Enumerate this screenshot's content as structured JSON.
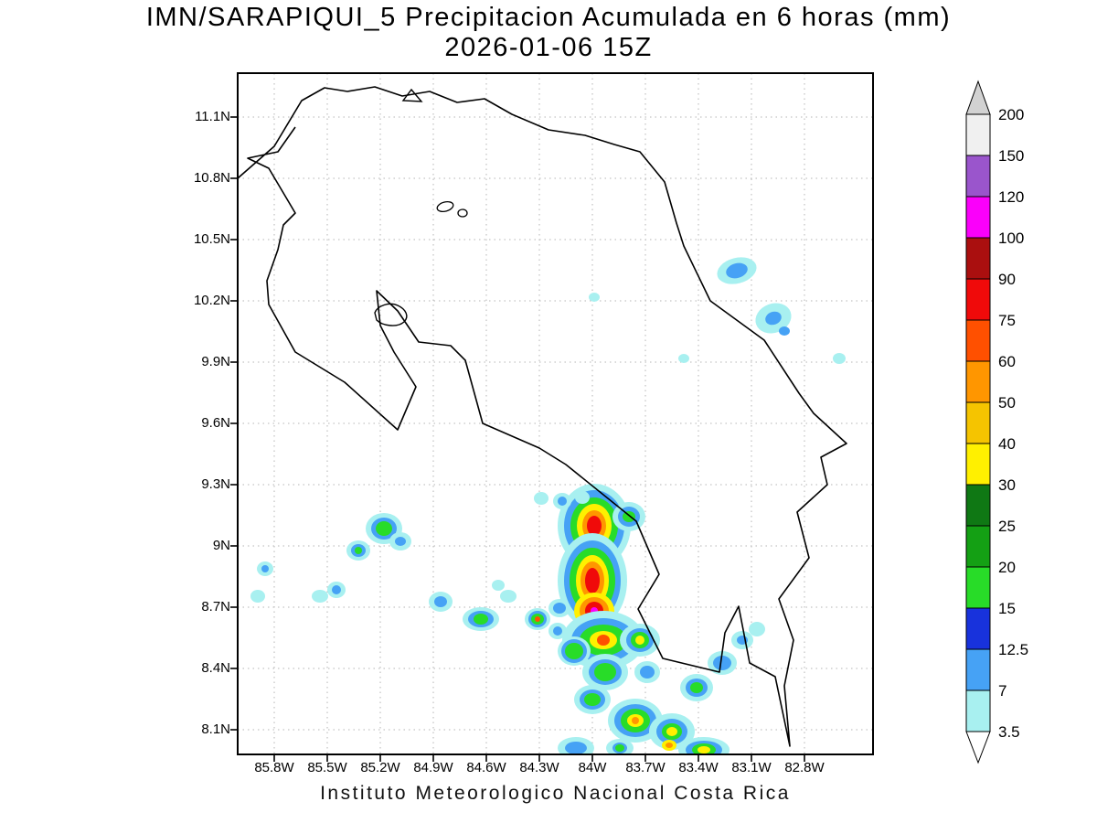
{
  "title": {
    "line1": "IMN/SARAPIQUI_5 Precipitacion Acumulada en 6 horas (mm)",
    "line2": "2026-01-06 15Z"
  },
  "caption": "Instituto Meteorologico Nacional Costa Rica",
  "axes": {
    "x_ticks": [
      "85.8W",
      "85.5W",
      "85.2W",
      "84.9W",
      "84.6W",
      "84.3W",
      "84W",
      "83.7W",
      "83.4W",
      "83.1W",
      "82.8W"
    ],
    "y_ticks": [
      "11.1N",
      "10.8N",
      "10.5N",
      "10.2N",
      "9.9N",
      "9.6N",
      "9.3N",
      "9N",
      "8.7N",
      "8.4N",
      "8.1N"
    ]
  },
  "legend": {
    "boundary_labels_top_to_bottom": [
      "200",
      "150",
      "120",
      "100",
      "90",
      "75",
      "60",
      "50",
      "40",
      "30",
      "25",
      "20",
      "15",
      "12.5",
      "7",
      "3.5"
    ]
  },
  "chart_data": {
    "type": "heatmap",
    "subtype": "filled_contour_precipitation_map",
    "title": "IMN/SARAPIQUI_5 Precipitacion Acumulada en 6 horas (mm)",
    "subtitle": "2026-01-06 15Z",
    "units": "mm",
    "region": "Costa Rica",
    "extent": {
      "lon_west": 86.0,
      "lon_east": 82.5,
      "lat_south": 8.0,
      "lat_north": 11.3
    },
    "levels_mm": [
      3.5,
      7,
      12.5,
      15,
      20,
      25,
      30,
      40,
      50,
      60,
      75,
      90,
      100,
      120,
      150,
      200
    ],
    "palette_low_to_high": [
      "#a8f0f0",
      "#46a2f5",
      "#1832dc",
      "#28dc28",
      "#14a014",
      "#0f7814",
      "#fff000",
      "#f5c400",
      "#ff9600",
      "#ff5000",
      "#f00a0a",
      "#aa0f0f",
      "#fa00fa",
      "#9a55cc",
      "#f0f0f0"
    ],
    "over_color": "#d2d2d2",
    "under_color": "#ffffff",
    "maxima": [
      {
        "lat_N": 8.7,
        "lon_W": 84.05,
        "peak_mm_range": "100-120"
      },
      {
        "lat_N": 9.0,
        "lon_W": 84.05,
        "peak_mm_range": "75-90"
      },
      {
        "lat_N": 8.62,
        "lon_W": 84.02,
        "peak_mm_range": "75-90"
      },
      {
        "lat_N": 8.15,
        "lon_W": 83.72,
        "peak_mm_range": "50-60"
      },
      {
        "lat_N": 10.25,
        "lon_W": 83.05,
        "peak_mm_range": "7-12.5"
      },
      {
        "lat_N": 10.0,
        "lon_W": 82.85,
        "peak_mm_range": "7-12.5"
      }
    ]
  },
  "map": {
    "blobs": [
      {
        "c": [
          390,
          495
        ],
        "l": [
          [
            1,
            40,
            46
          ],
          [
            2,
            33,
            39
          ],
          [
            4,
            26,
            31
          ],
          [
            7,
            19,
            24
          ],
          [
            9,
            13,
            17
          ],
          [
            11,
            8,
            11
          ]
        ]
      },
      {
        "c": [
          388,
          555
        ],
        "l": [
          [
            1,
            38,
            52
          ],
          [
            2,
            31,
            44
          ],
          [
            4,
            25,
            36
          ],
          [
            7,
            18,
            28
          ],
          [
            9,
            13,
            21
          ],
          [
            11,
            8,
            14
          ]
        ]
      },
      {
        "c": [
          390,
          588
        ],
        "l": [
          [
            7,
            22,
            20
          ],
          [
            9,
            16,
            15
          ],
          [
            11,
            10,
            10
          ],
          [
            13,
            4,
            4
          ]
        ]
      },
      {
        "c": [
          428,
          485
        ],
        "l": [
          [
            1,
            18,
            16
          ],
          [
            2,
            12,
            11
          ],
          [
            4,
            7,
            6
          ]
        ]
      },
      {
        "c": [
          355,
          468
        ],
        "l": [
          [
            1,
            10,
            9
          ],
          [
            2,
            5,
            5
          ]
        ]
      },
      {
        "c": [
          377,
          464
        ],
        "l": [
          [
            1,
            8,
            7
          ]
        ]
      },
      {
        "c": [
          400,
          620
        ],
        "l": [
          [
            1,
            45,
            32
          ],
          [
            2,
            35,
            24
          ],
          [
            4,
            26,
            17
          ],
          [
            7,
            15,
            10
          ],
          [
            10,
            7,
            6
          ]
        ]
      },
      {
        "c": [
          368,
          632
        ],
        "l": [
          [
            1,
            18,
            16
          ],
          [
            2,
            14,
            13
          ],
          [
            4,
            10,
            9
          ]
        ]
      },
      {
        "c": [
          440,
          620
        ],
        "l": [
          [
            1,
            22,
            18
          ],
          [
            2,
            15,
            13
          ],
          [
            4,
            10,
            9
          ],
          [
            7,
            5,
            5
          ]
        ]
      },
      {
        "c": [
          402,
          655
        ],
        "l": [
          [
            1,
            25,
            20
          ],
          [
            2,
            18,
            14
          ],
          [
            4,
            12,
            10
          ]
        ]
      },
      {
        "c": [
          448,
          655
        ],
        "l": [
          [
            1,
            14,
            12
          ],
          [
            2,
            8,
            7
          ]
        ]
      },
      {
        "c": [
          388,
          685
        ],
        "l": [
          [
            1,
            20,
            16
          ],
          [
            2,
            14,
            11
          ],
          [
            4,
            9,
            7
          ]
        ]
      },
      {
        "c": [
          435,
          708
        ],
        "l": [
          [
            1,
            30,
            24
          ],
          [
            2,
            23,
            18
          ],
          [
            4,
            16,
            13
          ],
          [
            7,
            9,
            7
          ],
          [
            9,
            4,
            4
          ]
        ]
      },
      {
        "c": [
          475,
          720
        ],
        "l": [
          [
            1,
            25,
            20
          ],
          [
            2,
            17,
            14
          ],
          [
            4,
            11,
            9
          ],
          [
            7,
            6,
            5
          ]
        ]
      },
      {
        "c": [
          502,
          672
        ],
        "l": [
          [
            1,
            18,
            15
          ],
          [
            2,
            12,
            10
          ],
          [
            4,
            7,
            6
          ]
        ]
      },
      {
        "c": [
          530,
          645
        ],
        "l": [
          [
            1,
            16,
            13
          ],
          [
            2,
            10,
            8
          ]
        ]
      },
      {
        "c": [
          552,
          620
        ],
        "l": [
          [
            1,
            12,
            10
          ],
          [
            2,
            6,
            5
          ]
        ]
      },
      {
        "c": [
          568,
          608
        ],
        "l": [
          [
            1,
            9,
            8
          ]
        ]
      },
      {
        "c": [
          510,
          740
        ],
        "l": [
          [
            1,
            28,
            14
          ],
          [
            2,
            20,
            10
          ],
          [
            4,
            13,
            7
          ],
          [
            7,
            7,
            4
          ]
        ]
      },
      {
        "c": [
          472,
          735
        ],
        "l": [
          [
            7,
            8,
            6
          ],
          [
            9,
            4,
            3
          ]
        ]
      },
      {
        "c": [
          160,
          498
        ],
        "l": [
          [
            1,
            20,
            17
          ],
          [
            2,
            14,
            12
          ],
          [
            4,
            9,
            8
          ]
        ]
      },
      {
        "c": [
          178,
          512
        ],
        "l": [
          [
            1,
            12,
            10
          ],
          [
            2,
            6,
            5
          ]
        ]
      },
      {
        "c": [
          132,
          522
        ],
        "l": [
          [
            1,
            13,
            11
          ],
          [
            2,
            8,
            7
          ],
          [
            4,
            4,
            4
          ]
        ]
      },
      {
        "c": [
          108,
          565
        ],
        "l": [
          [
            1,
            10,
            9
          ],
          [
            2,
            5,
            5
          ]
        ]
      },
      {
        "c": [
          30,
          542
        ],
        "l": [
          [
            1,
            9,
            8
          ],
          [
            2,
            4,
            4
          ]
        ]
      },
      {
        "c": [
          22,
          572
        ],
        "l": [
          [
            1,
            8,
            7
          ]
        ]
      },
      {
        "c": [
          90,
          572
        ],
        "l": [
          [
            1,
            9,
            7
          ]
        ]
      },
      {
        "c": [
          222,
          578
        ],
        "l": [
          [
            1,
            13,
            11
          ],
          [
            2,
            7,
            6
          ]
        ]
      },
      {
        "c": [
          266,
          597
        ],
        "l": [
          [
            1,
            20,
            13
          ],
          [
            2,
            14,
            9
          ],
          [
            4,
            8,
            6
          ]
        ]
      },
      {
        "c": [
          296,
          572
        ],
        "l": [
          [
            1,
            9,
            7
          ]
        ]
      },
      {
        "c": [
          328,
          597
        ],
        "l": [
          [
            1,
            14,
            12
          ],
          [
            2,
            10,
            9
          ],
          [
            4,
            7,
            6
          ],
          [
            10,
            3,
            3
          ]
        ]
      },
      {
        "c": [
          350,
          610
        ],
        "l": [
          [
            1,
            10,
            9
          ],
          [
            2,
            5,
            5
          ]
        ]
      },
      {
        "c": [
          546,
          216
        ],
        "rot": -15,
        "l": [
          [
            1,
            22,
            14
          ],
          [
            2,
            12,
            8
          ]
        ]
      },
      {
        "c": [
          586,
          268
        ],
        "rot": -20,
        "l": [
          [
            1,
            20,
            16
          ],
          [
            2,
            9,
            7
          ]
        ]
      },
      {
        "c": [
          598,
          282
        ],
        "l": [
          [
            2,
            6,
            5
          ]
        ]
      },
      {
        "c": [
          658,
          312
        ],
        "l": [
          [
            1,
            7,
            6
          ]
        ]
      },
      {
        "c": [
          488,
          312
        ],
        "l": [
          [
            1,
            6,
            5
          ]
        ]
      },
      {
        "c": [
          390,
          245
        ],
        "l": [
          [
            1,
            6,
            5
          ]
        ]
      },
      {
        "c": [
          285,
          560
        ],
        "l": [
          [
            1,
            7,
            6
          ]
        ]
      },
      {
        "c": [
          352,
          585
        ],
        "l": [
          [
            1,
            12,
            10
          ],
          [
            2,
            7,
            6
          ]
        ]
      },
      {
        "c": [
          332,
          465
        ],
        "l": [
          [
            1,
            8,
            7
          ]
        ]
      },
      {
        "c": [
          370,
          738
        ],
        "l": [
          [
            1,
            20,
            12
          ],
          [
            2,
            12,
            7
          ]
        ]
      },
      {
        "c": [
          418,
          738
        ],
        "l": [
          [
            1,
            15,
            10
          ],
          [
            2,
            8,
            6
          ],
          [
            4,
            5,
            4
          ]
        ]
      }
    ]
  }
}
